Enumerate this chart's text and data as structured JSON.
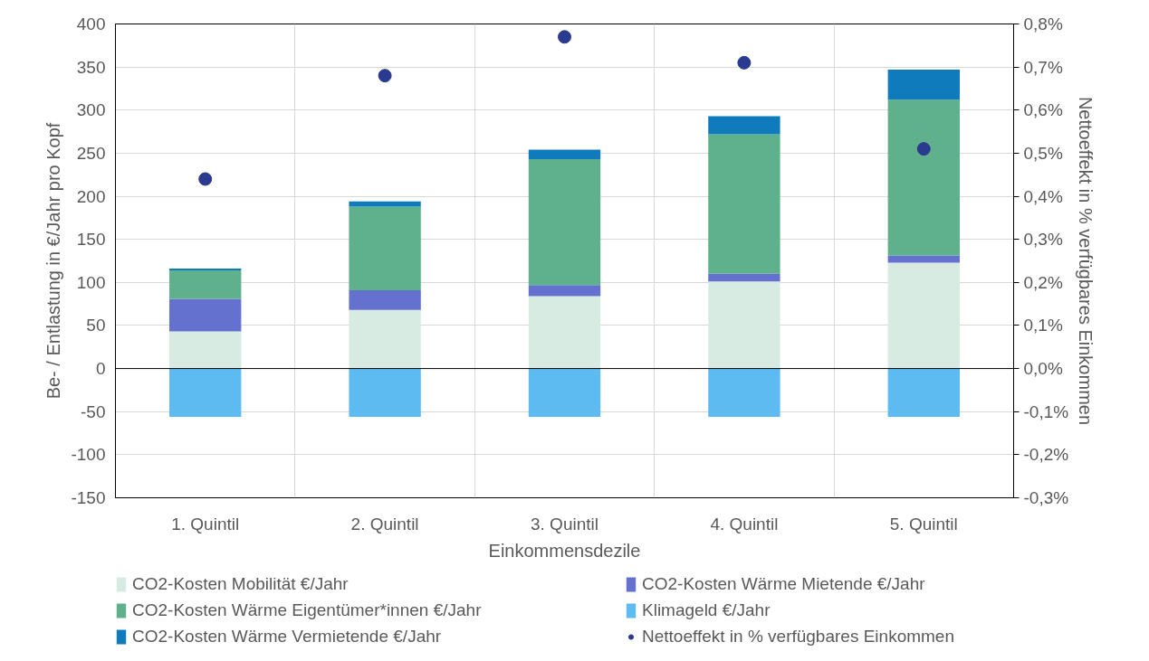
{
  "chart_data": {
    "type": "bar",
    "stacked": true,
    "categories": [
      "1. Quintil",
      "2. Quintil",
      "3. Quintil",
      "4. Quintil",
      "5. Quintil"
    ],
    "xlabel": "Einkommensdezile",
    "ylabel": "Be- / Entlastung in €/Jahr pro Kopf",
    "y2label": "Nettoeffekt in % verfügbares Einkommen",
    "ylim": [
      -150,
      400
    ],
    "yticks": [
      -150,
      -100,
      -50,
      0,
      50,
      100,
      150,
      200,
      250,
      300,
      350,
      400
    ],
    "y2lim": [
      -0.3,
      0.8
    ],
    "y2ticks": [
      {
        "value": -0.3,
        "label": "-0,3%"
      },
      {
        "value": -0.2,
        "label": "-0,2%"
      },
      {
        "value": -0.1,
        "label": "-0,1%"
      },
      {
        "value": 0,
        "label": "0,0%"
      },
      {
        "value": 0.1,
        "label": "0,1%"
      },
      {
        "value": 0.2,
        "label": "0,2%"
      },
      {
        "value": 0.3,
        "label": "0,3%"
      },
      {
        "value": 0.4,
        "label": "0,4%"
      },
      {
        "value": 0.5,
        "label": "0,5%"
      },
      {
        "value": 0.6,
        "label": "0,6%"
      },
      {
        "value": 0.7,
        "label": "0,7%"
      },
      {
        "value": 0.8,
        "label": "0,8%"
      }
    ],
    "series": [
      {
        "name": "CO2-Kosten Mobilität €/Jahr",
        "color": "#d7ebe2",
        "values": [
          43,
          68,
          84,
          101,
          123
        ]
      },
      {
        "name": "CO2-Kosten Wärme Mietende €/Jahr",
        "color": "#6471cf",
        "values": [
          38,
          23,
          13,
          9,
          8
        ]
      },
      {
        "name": "CO2-Kosten Wärme Eigentümer*innen €/Jahr",
        "color": "#5eb18c",
        "values": [
          33,
          97,
          146,
          162,
          181
        ]
      },
      {
        "name": "Klimageld €/Jahr",
        "color": "#5ebbf1",
        "values": [
          -56,
          -56,
          -56,
          -56,
          -56
        ]
      },
      {
        "name": "CO2-Kosten Wärme Vermietende €/Jahr",
        "color": "#0f7bbd",
        "values": [
          2,
          6,
          11,
          21,
          35
        ]
      },
      {
        "name": "Nettoeffekt in % verfügbares Einkommen",
        "color": "#2a3a8e",
        "type": "scatter",
        "axis": "y2",
        "marker": "circle",
        "values": [
          0.44,
          0.68,
          0.77,
          0.71,
          0.51
        ]
      }
    ],
    "ref_lines": [
      {
        "axis": "y",
        "value": 0,
        "color": "#000000"
      }
    ],
    "grid": true,
    "legend": "bottom"
  }
}
